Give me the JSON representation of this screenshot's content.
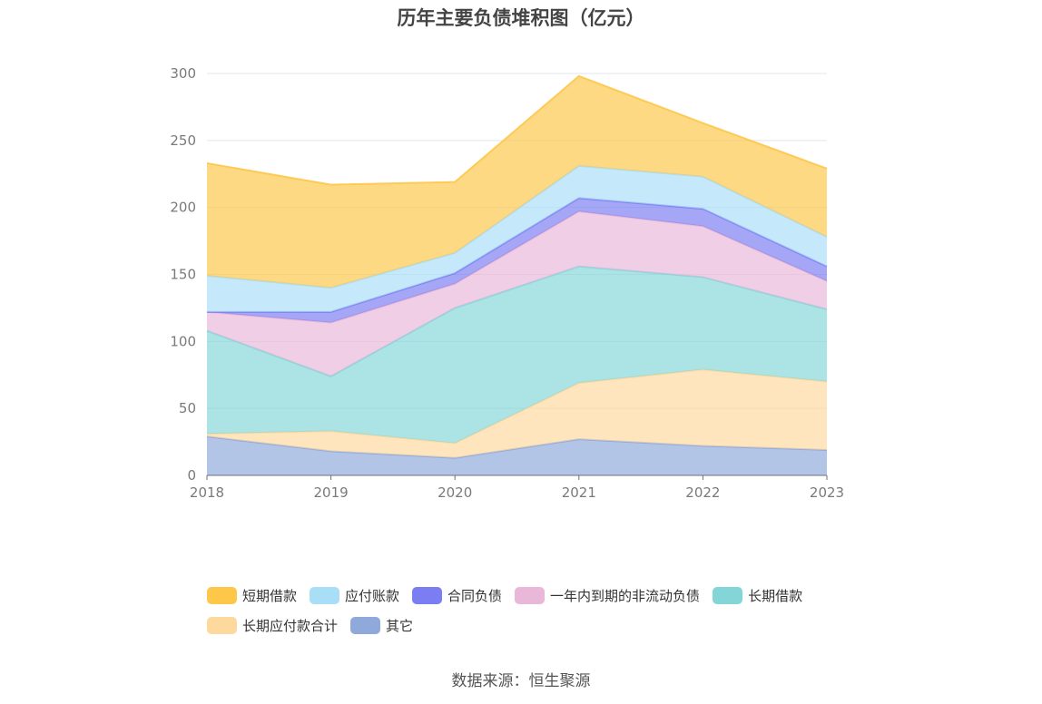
{
  "source_text": "数据来源：恒生聚源",
  "chart_data": {
    "type": "area",
    "stacked": true,
    "title": "历年主要负债堆积图（亿元）",
    "x": [
      "2018",
      "2019",
      "2020",
      "2021",
      "2022",
      "2023"
    ],
    "ylim": [
      0,
      300
    ],
    "yticks": [
      0,
      50,
      100,
      150,
      200,
      250,
      300
    ],
    "grid": true,
    "legend_position": "bottom",
    "series": [
      {
        "name": "其它",
        "color": "#8fa9db",
        "values": [
          29,
          18,
          13,
          27,
          22,
          19
        ]
      },
      {
        "name": "长期应付款合计",
        "color": "#fdd99e",
        "values": [
          2,
          15,
          11,
          42,
          57,
          51
        ]
      },
      {
        "name": "长期借款",
        "color": "#84d5d8",
        "values": [
          77,
          41,
          101,
          87,
          69,
          54
        ]
      },
      {
        "name": "一年内到期的非流动负债",
        "color": "#e9b7d8",
        "values": [
          14,
          40,
          18,
          41,
          38,
          21
        ]
      },
      {
        "name": "合同负债",
        "color": "#7b7df2",
        "values": [
          0,
          8,
          8,
          10,
          13,
          11
        ]
      },
      {
        "name": "应付账款",
        "color": "#a9def7",
        "values": [
          27,
          18,
          15,
          24,
          24,
          22
        ]
      },
      {
        "name": "短期借款",
        "color": "#fdc74a",
        "values": [
          84,
          77,
          53,
          67,
          40,
          51
        ]
      }
    ]
  },
  "legend_rows": [
    [
      "短期借款",
      "应付账款",
      "合同负债",
      "一年内到期的非流动负债",
      "长期借款"
    ],
    [
      "长期应付款合计",
      "其它"
    ]
  ]
}
